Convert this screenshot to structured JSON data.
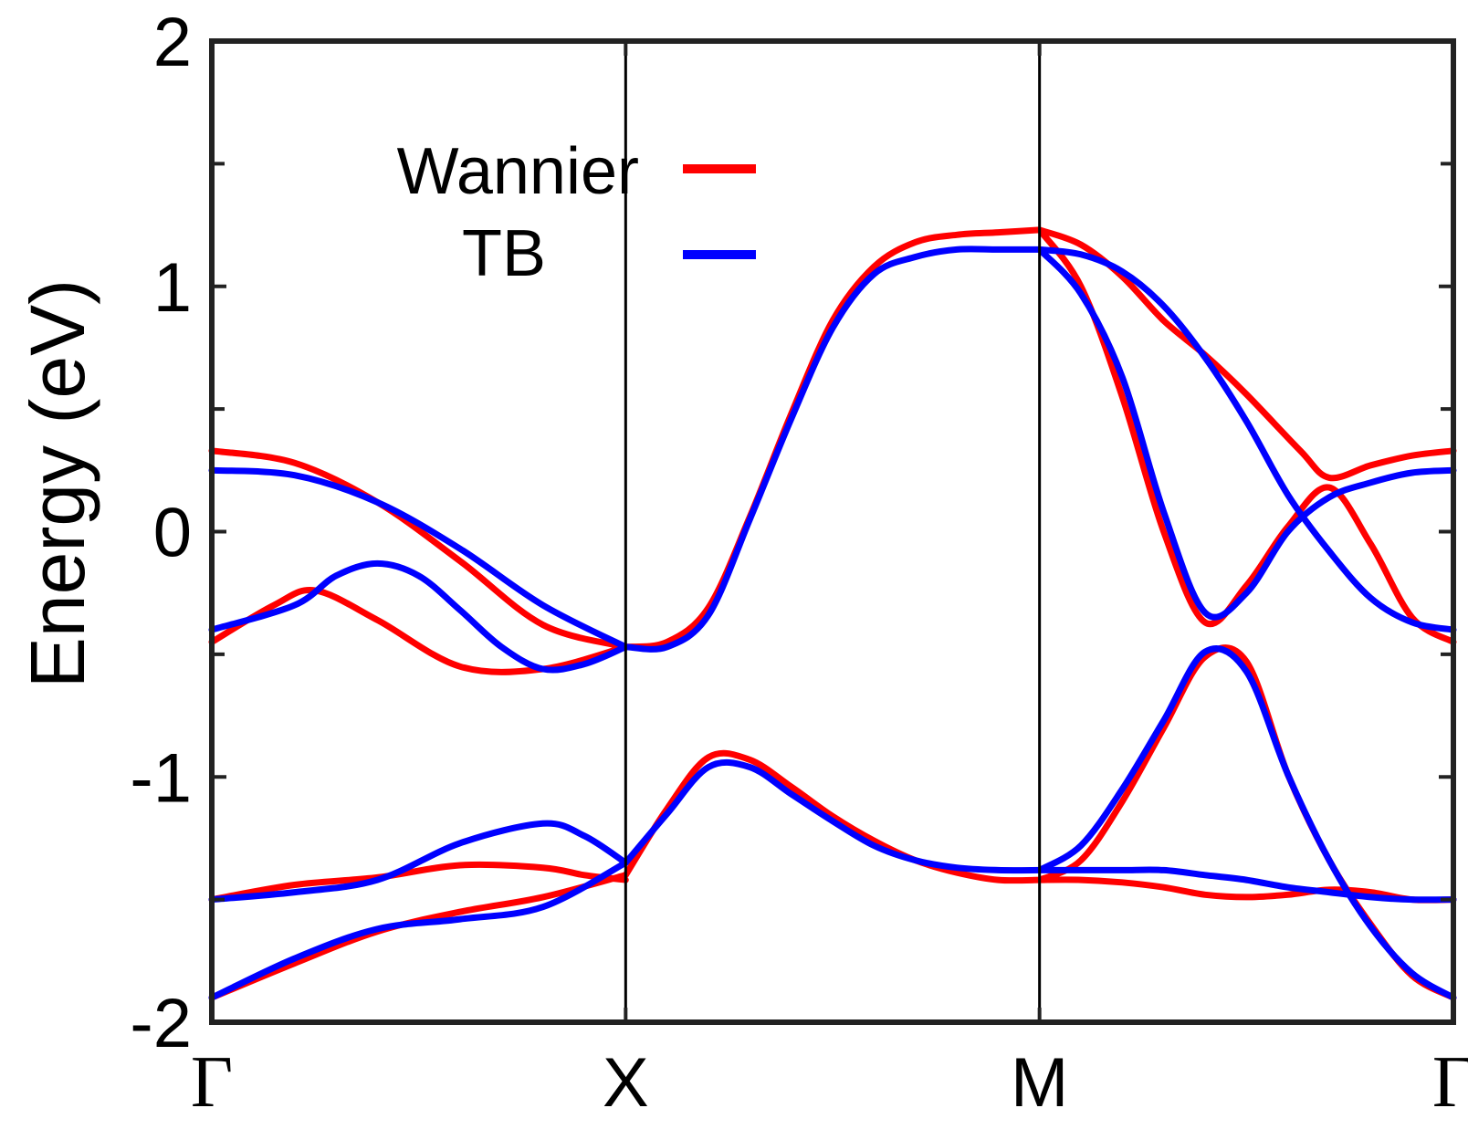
{
  "chart_data": {
    "type": "line",
    "title": "",
    "xlabel": "",
    "ylabel": "Energy (eV)",
    "ylim": [
      -2,
      2
    ],
    "yticks": [
      "2",
      "1",
      "0",
      "-1",
      "-2"
    ],
    "yticks_values": [
      2,
      1,
      0,
      -1,
      -2
    ],
    "xrange": [
      0,
      3
    ],
    "xticks": [
      "Γ",
      "X",
      "M",
      "Γ"
    ],
    "xticks_values": [
      0,
      1,
      2,
      3
    ],
    "vlines": [
      1,
      2
    ],
    "legend": {
      "placement": "top-left",
      "entries": [
        "Wannier",
        "TB"
      ]
    },
    "grid": false,
    "colors": {
      "Wannier": "#ff0000",
      "TB": "#0000ff",
      "frame": "#222222",
      "vline": "#000000"
    },
    "series": [
      {
        "name": "Wannier",
        "color": "#ff0000",
        "bands": [
          {
            "x": [
              0,
              0.2,
              0.4,
              0.6,
              0.8,
              1.0
            ],
            "y": [
              0.33,
              0.28,
              0.12,
              -0.12,
              -0.38,
              -0.47
            ]
          },
          {
            "x": [
              0,
              0.15,
              0.25,
              0.4,
              0.6,
              0.8,
              1.0
            ],
            "y": [
              -0.45,
              -0.3,
              -0.24,
              -0.36,
              -0.55,
              -0.56,
              -0.47
            ]
          },
          {
            "x": [
              1.0,
              1.1,
              1.2,
              1.3,
              1.4,
              1.5,
              1.6,
              1.7,
              1.8,
              1.9,
              2.0
            ],
            "y": [
              -0.47,
              -0.45,
              -0.31,
              0.06,
              0.48,
              0.86,
              1.08,
              1.18,
              1.21,
              1.22,
              1.23
            ]
          },
          {
            "x": [
              2.0,
              2.1,
              2.2,
              2.3,
              2.4,
              2.5,
              2.63,
              2.7,
              2.8,
              2.9,
              3.0
            ],
            "y": [
              1.23,
              1.17,
              1.04,
              0.86,
              0.72,
              0.56,
              0.33,
              0.22,
              0.27,
              0.31,
              0.33
            ]
          },
          {
            "x": [
              2.0,
              2.1,
              2.2,
              2.3,
              2.4,
              2.5,
              2.6,
              2.7,
              2.8,
              2.9,
              3.0
            ],
            "y": [
              1.23,
              1.0,
              0.55,
              0.0,
              -0.37,
              -0.22,
              0.02,
              0.18,
              -0.05,
              -0.35,
              -0.45
            ]
          },
          {
            "x": [
              0,
              0.2,
              0.4,
              0.6,
              0.8,
              0.9,
              1.0
            ],
            "y": [
              -1.5,
              -1.44,
              -1.41,
              -1.36,
              -1.37,
              -1.4,
              -1.42
            ]
          },
          {
            "x": [
              0,
              0.2,
              0.4,
              0.6,
              0.8,
              1.0
            ],
            "y": [
              -1.9,
              -1.76,
              -1.63,
              -1.55,
              -1.49,
              -1.4
            ]
          },
          {
            "x": [
              1.0,
              1.1,
              1.2,
              1.3,
              1.4,
              1.5,
              1.6,
              1.7,
              1.8,
              1.9,
              2.0
            ],
            "y": [
              -1.4,
              -1.13,
              -0.92,
              -0.93,
              -1.04,
              -1.16,
              -1.26,
              -1.34,
              -1.39,
              -1.42,
              -1.42
            ]
          },
          {
            "x": [
              2.0,
              2.1,
              2.2,
              2.3,
              2.4,
              2.5,
              2.6,
              2.7,
              2.8,
              2.9,
              3.0
            ],
            "y": [
              -1.42,
              -1.42,
              -1.43,
              -1.45,
              -1.48,
              -1.49,
              -1.48,
              -1.46,
              -1.47,
              -1.5,
              -1.5
            ]
          },
          {
            "x": [
              2.0,
              2.1,
              2.2,
              2.3,
              2.4,
              2.5,
              2.6,
              2.7,
              2.8,
              2.9,
              3.0
            ],
            "y": [
              -1.42,
              -1.34,
              -1.1,
              -0.8,
              -0.51,
              -0.53,
              -0.99,
              -1.34,
              -1.6,
              -1.81,
              -1.9
            ]
          }
        ]
      },
      {
        "name": "TB",
        "color": "#0000ff",
        "bands": [
          {
            "x": [
              0,
              0.2,
              0.4,
              0.6,
              0.8,
              1.0
            ],
            "y": [
              0.25,
              0.23,
              0.12,
              -0.07,
              -0.3,
              -0.47
            ]
          },
          {
            "x": [
              0,
              0.2,
              0.3,
              0.4,
              0.5,
              0.6,
              0.7,
              0.8,
              0.9,
              1.0
            ],
            "y": [
              -0.4,
              -0.3,
              -0.18,
              -0.13,
              -0.18,
              -0.32,
              -0.47,
              -0.56,
              -0.54,
              -0.47
            ]
          },
          {
            "x": [
              1.0,
              1.1,
              1.2,
              1.3,
              1.4,
              1.5,
              1.6,
              1.7,
              1.8,
              1.9,
              2.0
            ],
            "y": [
              -0.47,
              -0.47,
              -0.34,
              0.05,
              0.46,
              0.83,
              1.05,
              1.12,
              1.15,
              1.15,
              1.15
            ]
          },
          {
            "x": [
              2.0,
              2.1,
              2.2,
              2.3,
              2.4,
              2.5,
              2.6,
              2.7,
              2.8,
              2.9,
              3.0
            ],
            "y": [
              1.15,
              1.13,
              1.06,
              0.92,
              0.71,
              0.45,
              0.15,
              -0.08,
              -0.27,
              -0.37,
              -0.4
            ]
          },
          {
            "x": [
              2.0,
              2.1,
              2.2,
              2.3,
              2.4,
              2.5,
              2.6,
              2.7,
              2.8,
              2.9,
              3.0
            ],
            "y": [
              1.15,
              0.97,
              0.63,
              0.08,
              -0.33,
              -0.25,
              0.0,
              0.14,
              0.2,
              0.24,
              0.25
            ]
          },
          {
            "x": [
              0,
              0.2,
              0.4,
              0.6,
              0.8,
              0.9,
              1.0
            ],
            "y": [
              -1.5,
              -1.47,
              -1.42,
              -1.27,
              -1.19,
              -1.24,
              -1.35
            ]
          },
          {
            "x": [
              0,
              0.2,
              0.4,
              0.6,
              0.8,
              1.0
            ],
            "y": [
              -1.9,
              -1.74,
              -1.62,
              -1.58,
              -1.53,
              -1.35
            ]
          },
          {
            "x": [
              1.0,
              1.1,
              1.2,
              1.3,
              1.4,
              1.5,
              1.6,
              1.7,
              1.8,
              1.9,
              2.0
            ],
            "y": [
              -1.35,
              -1.15,
              -0.96,
              -0.96,
              -1.07,
              -1.18,
              -1.28,
              -1.34,
              -1.37,
              -1.38,
              -1.38
            ]
          },
          {
            "x": [
              2.0,
              2.1,
              2.2,
              2.3,
              2.4,
              2.5,
              2.6,
              2.7,
              2.8,
              2.9,
              3.0
            ],
            "y": [
              -1.38,
              -1.38,
              -1.38,
              -1.38,
              -1.4,
              -1.42,
              -1.45,
              -1.47,
              -1.49,
              -1.5,
              -1.5
            ]
          },
          {
            "x": [
              2.0,
              2.1,
              2.2,
              2.3,
              2.4,
              2.5,
              2.6,
              2.7,
              2.8,
              2.9,
              3.0
            ],
            "y": [
              -1.38,
              -1.28,
              -1.05,
              -0.77,
              -0.49,
              -0.57,
              -0.99,
              -1.34,
              -1.61,
              -1.8,
              -1.9
            ]
          }
        ]
      }
    ]
  }
}
